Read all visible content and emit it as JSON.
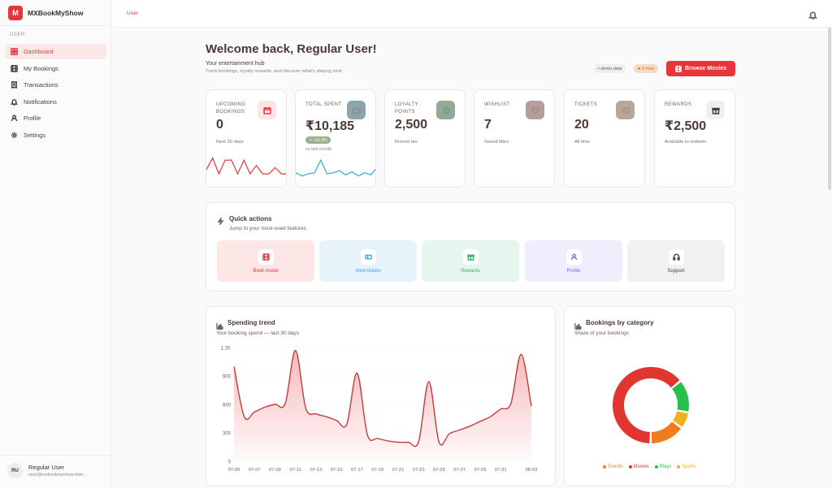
{
  "brand": {
    "logo_letter": "M",
    "name": "MXBookMyShow"
  },
  "sidebar": {
    "section_label": "USER",
    "items": [
      {
        "label": "Dashboard",
        "icon": "dashboard-icon",
        "active": true
      },
      {
        "label": "My Bookings",
        "icon": "film-icon",
        "active": false
      },
      {
        "label": "Transactions",
        "icon": "receipt-icon",
        "active": false
      },
      {
        "label": "Notifications",
        "icon": "bell-icon",
        "active": false
      },
      {
        "label": "Profile",
        "icon": "user-icon",
        "active": false
      },
      {
        "label": "Settings",
        "icon": "gear-icon",
        "active": false
      }
    ],
    "user": {
      "initials": "RU",
      "name": "Regular User",
      "email": "user@mxbookmyshow.mim..."
    }
  },
  "topbar": {
    "breadcrumb": "User"
  },
  "header": {
    "welcome": "Welcome back, Regular User!",
    "subtitle": "Your entertainment hub",
    "description": "Track bookings, loyalty rewards, and discover what's playing next.",
    "badge_demo": "• demo data",
    "badge_time": "● 2 mon",
    "browse_label": "Browse Movies"
  },
  "stats": [
    {
      "label": "UPCOMING BOOKINGS",
      "value": "0",
      "sub": "Next 30 days",
      "color": "#e8343b",
      "icon_bg": "#fde3e3",
      "spark": [
        0.35,
        0.9,
        0.15,
        0.8,
        0.8,
        0.15,
        0.8,
        0.15,
        0.55,
        0.15,
        0.15,
        0.45,
        0.15,
        0.15
      ]
    },
    {
      "label": "TOTAL SPENT",
      "value": "₹10,185",
      "badge": "↗ +12.5%",
      "sub": "vs last month",
      "color": "#3aa6d8",
      "icon_bg": "#8fa3ab",
      "spark": [
        0.2,
        0.05,
        0.15,
        0.2,
        0.8,
        0.15,
        0.2,
        0.3,
        0.1,
        0.25,
        0.05,
        0.2,
        0.1,
        0.45
      ]
    },
    {
      "label": "LOYALTY POINTS",
      "value": "2,500",
      "sub": "Bronze tier",
      "icon_bg": "#8faa97"
    },
    {
      "label": "WISHLIST",
      "value": "7",
      "sub": "Saved titles",
      "icon_bg": "#b39d9d"
    },
    {
      "label": "TICKETS",
      "value": "20",
      "sub": "All time",
      "icon_bg": "#b7a79a"
    },
    {
      "label": "REWARDS",
      "value": "₹2,500",
      "sub": "Available to redeem",
      "icon_bg": "#f1f0ef"
    }
  ],
  "quick_actions": {
    "title": "Quick actions",
    "subtitle": "Jump to your most-used features",
    "tiles": [
      {
        "label": "Book movie",
        "icon": "film-icon",
        "bg": "#fde6e6",
        "fg": "#e8343b"
      },
      {
        "label": "View tickets",
        "icon": "ticket-icon",
        "bg": "#e6f3fb",
        "fg": "#3aa6d8"
      },
      {
        "label": "Rewards",
        "icon": "gift-icon",
        "bg": "#e6f6ee",
        "fg": "#2fb36e"
      },
      {
        "label": "Profile",
        "icon": "user-icon",
        "bg": "#efeefc",
        "fg": "#7b6ae0"
      },
      {
        "label": "Support",
        "icon": "headphones-icon",
        "bg": "#f1f1f1",
        "fg": "#4a3d38"
      }
    ]
  },
  "spending_trend": {
    "title": "Spending trend",
    "subtitle": "Your booking spend — last 30 days",
    "chart_data": {
      "type": "area",
      "x": [
        "07-05",
        "07-06",
        "07-07",
        "07-08",
        "07-09",
        "07-10",
        "07-11",
        "07-12",
        "07-13",
        "07-14",
        "07-15",
        "07-16",
        "07-17",
        "07-18",
        "07-19",
        "07-20",
        "07-21",
        "07-22",
        "07-23",
        "07-24",
        "07-25",
        "07-26",
        "07-27",
        "07-28",
        "07-29",
        "07-30",
        "07-31",
        "08-01",
        "08-02",
        "08-03"
      ],
      "tick_labels": [
        "07-05",
        "07-07",
        "07-09",
        "07-11",
        "07-13",
        "07-15",
        "07-17",
        "07-19",
        "07-21",
        "07-23",
        "07-25",
        "07-27",
        "07-29",
        "07-31",
        "08-03"
      ],
      "values": [
        1000,
        470,
        520,
        570,
        600,
        610,
        1170,
        560,
        500,
        470,
        430,
        390,
        930,
        280,
        240,
        215,
        200,
        200,
        205,
        840,
        200,
        290,
        330,
        370,
        420,
        470,
        550,
        610,
        1130,
        580
      ],
      "y_ticks": [
        "0",
        "300",
        "600",
        "900",
        "1.2K"
      ],
      "ylim": [
        0,
        1200
      ],
      "color": "#c93a3a"
    }
  },
  "bookings_category": {
    "title": "Bookings by category",
    "subtitle": "Share of your bookings",
    "chart_data": {
      "type": "pie",
      "categories": [
        "Events",
        "Movies",
        "Plays",
        "Sports"
      ],
      "values": [
        15,
        64,
        14,
        7
      ],
      "colors": [
        "#f07c1e",
        "#e0362f",
        "#27c04a",
        "#f0b21a"
      ]
    }
  }
}
